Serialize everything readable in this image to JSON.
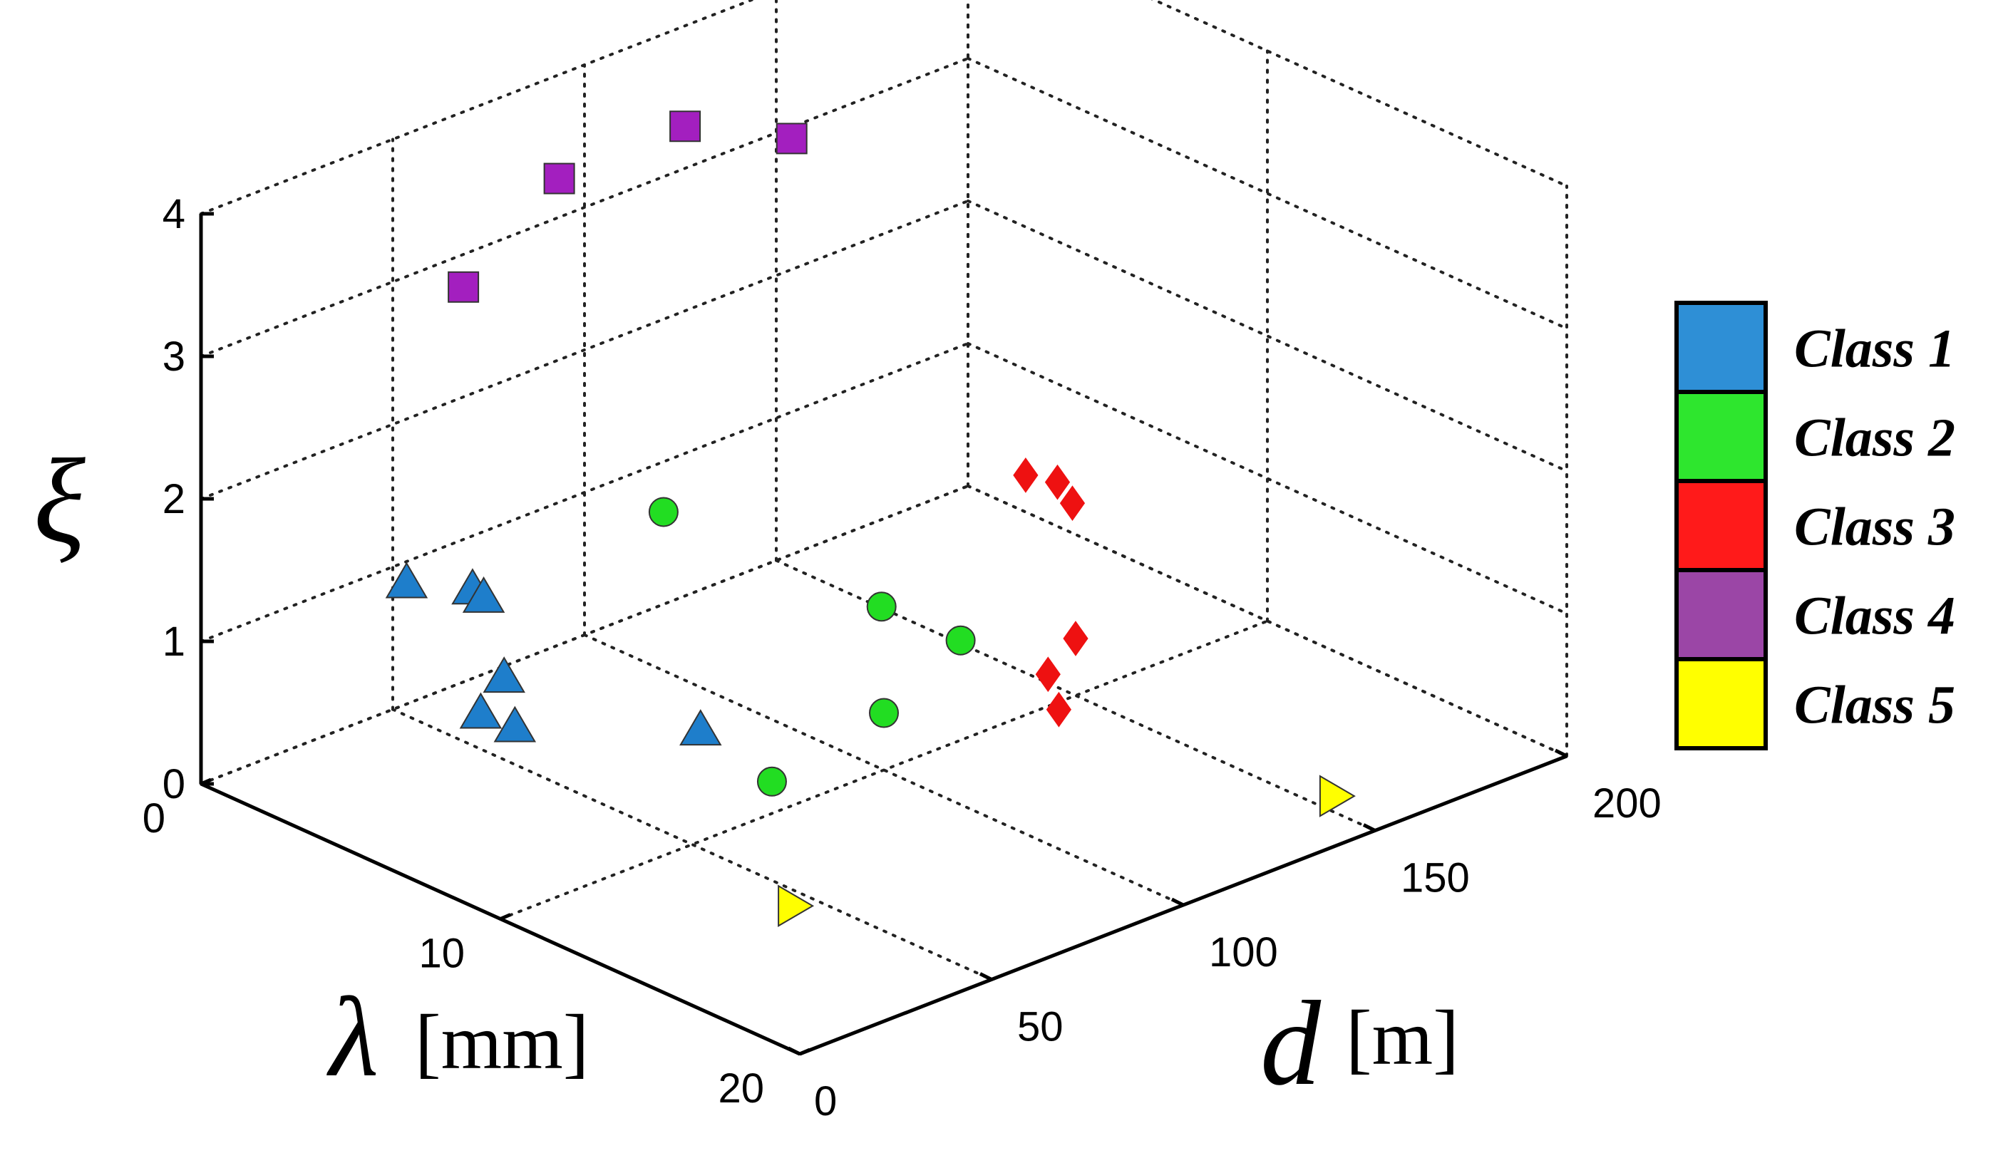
{
  "chart_data": {
    "type": "scatter3d",
    "title": "",
    "axes": {
      "x": {
        "symbol": "λ",
        "unit": "[mm]",
        "range": [
          0,
          20
        ],
        "ticks": [
          0,
          10,
          20
        ]
      },
      "y": {
        "symbol": "d",
        "unit": "[m]",
        "range": [
          0,
          200
        ],
        "ticks": [
          0,
          50,
          100,
          150,
          200
        ]
      },
      "z": {
        "symbol": "ξ",
        "unit": "",
        "range": [
          0,
          4
        ],
        "ticks": [
          0,
          1,
          2,
          3,
          4
        ]
      }
    },
    "grid": true,
    "legend_position": "right",
    "series": [
      {
        "name": "Class 1",
        "color": "#1e7ecb",
        "legend_color": "#2e8fd6",
        "marker": "triangle-up",
        "points": [
          [
            1,
            63,
            0.8
          ],
          [
            1.5,
            62,
            0.8
          ],
          [
            2,
            38,
            1.2
          ],
          [
            5,
            40,
            0.8
          ],
          [
            5.5,
            30,
            0.7
          ],
          [
            6,
            35,
            0.6
          ],
          [
            9,
            60,
            0.6
          ]
        ]
      },
      {
        "name": "Class 2",
        "color": "#22dd22",
        "legend_color": "#2ee62e",
        "marker": "circle",
        "points": [
          [
            2,
            105,
            1.0
          ],
          [
            8,
            115,
            0.8
          ],
          [
            10,
            120,
            0.7
          ],
          [
            10,
            100,
            0.4
          ],
          [
            11,
            63,
            0.4
          ]
        ]
      },
      {
        "name": "Class 3",
        "color": "#ee1111",
        "legend_color": "#ff1a1a",
        "marker": "diamond",
        "points": [
          [
            5,
            176,
            0.8
          ],
          [
            3.5,
            196,
            0.4
          ],
          [
            4,
            196,
            0.3
          ],
          [
            10,
            150,
            0.4
          ],
          [
            11,
            135,
            0.4
          ],
          [
            12,
            130,
            0.3
          ]
        ]
      },
      {
        "name": "Class 4",
        "color": "#a31fbf",
        "legend_color": "#9b46a6",
        "marker": "square",
        "points": [
          [
            4,
            95,
            4.0
          ],
          [
            5,
            115,
            3.8
          ],
          [
            3,
            70,
            3.8
          ],
          [
            3,
            45,
            3.3
          ]
        ]
      },
      {
        "name": "Class 5",
        "color": "#ffff00",
        "legend_color": "#ffff00",
        "marker": "triangle-right",
        "points": [
          [
            14,
            45,
            0.0
          ],
          [
            18,
            155,
            0.0
          ]
        ]
      }
    ]
  }
}
